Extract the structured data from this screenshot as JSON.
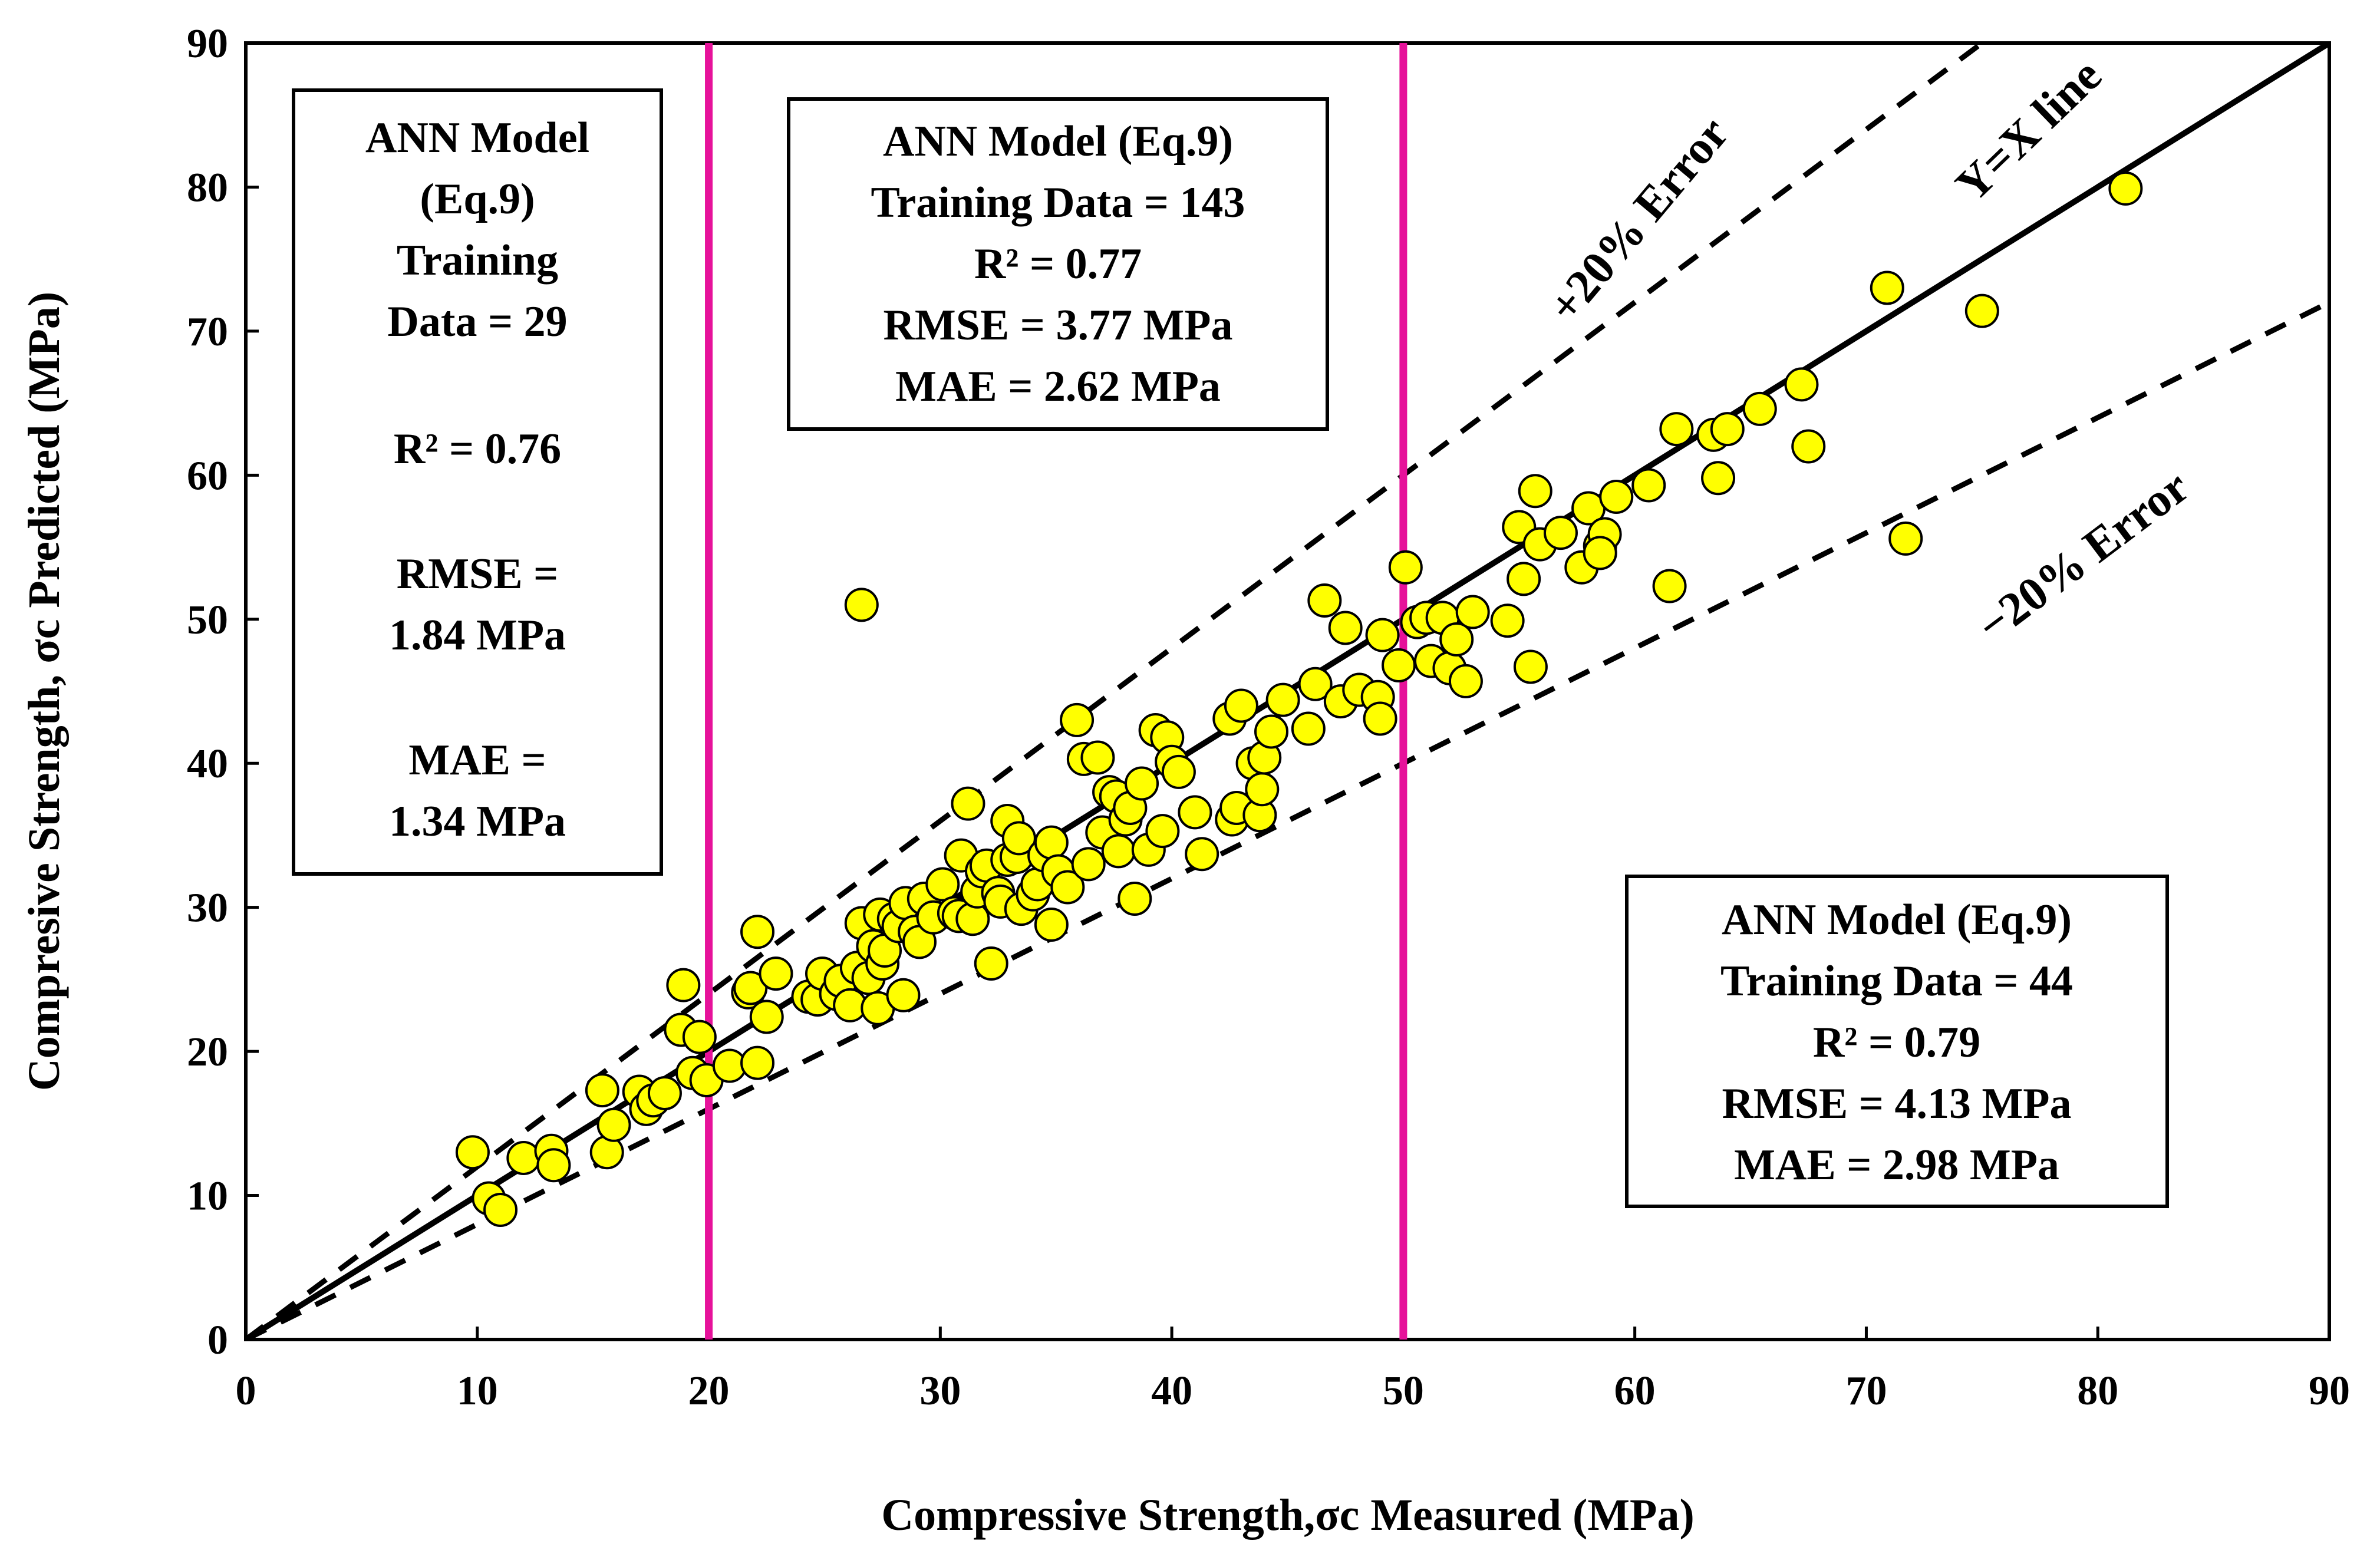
{
  "chart_data": {
    "type": "scatter",
    "xlabel": "Compressive Strength,σc Measured (MPa)",
    "ylabel": "Compresive Strength, σc Predicted (MPa)",
    "xlim": [
      0,
      90
    ],
    "ylim": [
      0,
      90
    ],
    "x_ticks": [
      "0",
      "10",
      "20",
      "30",
      "40",
      "50",
      "60",
      "70",
      "80",
      "90"
    ],
    "y_ticks": [
      "0",
      "10",
      "20",
      "30",
      "40",
      "50",
      "60",
      "70",
      "80",
      "90"
    ],
    "grid": false,
    "colors": {
      "points": "#ffff00",
      "boundary_lines": "#e6129a",
      "lines": "#000000"
    },
    "reference_lines": [
      {
        "name": "Y=X line",
        "slope": 1.0,
        "style": "solid"
      },
      {
        "name": "+20% Error",
        "slope": 1.2,
        "style": "dashed"
      },
      {
        "name": "−20% Error",
        "slope": 0.8,
        "style": "dashed"
      }
    ],
    "vertical_lines_x": [
      20,
      50
    ],
    "annotations": {
      "yx_label": "Y=X line",
      "plus_label": "+20% Error",
      "minus_label": "−20% Error"
    },
    "stat_boxes": {
      "low": {
        "title1": "ANN Model",
        "title2": "(Eq.9)",
        "data1": "Training",
        "data2": "Data = 29",
        "r2": "R² = 0.76",
        "rmse1": "RMSE =",
        "rmse2": "1.84 MPa",
        "mae1": "MAE =",
        "mae2": "1.34 MPa"
      },
      "mid": {
        "title": "ANN Model (Eq.9)",
        "data": "Training Data = 143",
        "r2": "R² = 0.77",
        "rmse": "RMSE = 3.77 MPa",
        "mae": "MAE = 2.62 MPa"
      },
      "high": {
        "title": "ANN Model (Eq.9)",
        "data": "Training Data = 44",
        "r2": "R² = 0.79",
        "rmse": "RMSE = 4.13 MPa",
        "mae": "MAE = 2.98 MPa"
      }
    },
    "points": [
      [
        9.8,
        13.0
      ],
      [
        10.5,
        9.8
      ],
      [
        11.0,
        9.0
      ],
      [
        12.0,
        12.6
      ],
      [
        13.2,
        13.1
      ],
      [
        13.3,
        12.1
      ],
      [
        15.4,
        17.3
      ],
      [
        15.6,
        13.0
      ],
      [
        15.9,
        14.9
      ],
      [
        17.0,
        17.2
      ],
      [
        17.3,
        16.0
      ],
      [
        17.6,
        16.6
      ],
      [
        18.1,
        17.1
      ],
      [
        18.8,
        21.5
      ],
      [
        18.9,
        24.6
      ],
      [
        19.3,
        18.5
      ],
      [
        19.6,
        21.0
      ],
      [
        19.9,
        18.0
      ],
      [
        20.9,
        19.0
      ],
      [
        21.7,
        24.1
      ],
      [
        21.8,
        24.4
      ],
      [
        22.1,
        28.3
      ],
      [
        22.1,
        19.2
      ],
      [
        22.5,
        22.4
      ],
      [
        22.9,
        25.4
      ],
      [
        24.3,
        23.8
      ],
      [
        24.7,
        23.6
      ],
      [
        24.9,
        25.4
      ],
      [
        25.5,
        24.0
      ],
      [
        25.7,
        24.9
      ],
      [
        26.1,
        23.2
      ],
      [
        26.4,
        25.8
      ],
      [
        26.6,
        28.9
      ],
      [
        26.6,
        51.0
      ],
      [
        26.9,
        25.1
      ],
      [
        27.1,
        27.3
      ],
      [
        27.3,
        23.0
      ],
      [
        27.4,
        29.5
      ],
      [
        27.5,
        26.1
      ],
      [
        27.6,
        27.0
      ],
      [
        28.0,
        29.2
      ],
      [
        28.2,
        28.7
      ],
      [
        28.4,
        23.9
      ],
      [
        28.5,
        30.3
      ],
      [
        28.9,
        28.3
      ],
      [
        29.1,
        27.6
      ],
      [
        29.3,
        30.6
      ],
      [
        29.7,
        29.3
      ],
      [
        30.1,
        31.6
      ],
      [
        30.6,
        29.6
      ],
      [
        30.8,
        29.4
      ],
      [
        30.9,
        33.6
      ],
      [
        31.2,
        37.2
      ],
      [
        31.4,
        29.2
      ],
      [
        31.6,
        31.1
      ],
      [
        31.8,
        32.5
      ],
      [
        32.0,
        32.9
      ],
      [
        32.2,
        26.1
      ],
      [
        32.5,
        31.0
      ],
      [
        32.6,
        30.4
      ],
      [
        32.9,
        33.3
      ],
      [
        32.9,
        36.0
      ],
      [
        33.3,
        33.5
      ],
      [
        33.4,
        34.8
      ],
      [
        33.5,
        29.9
      ],
      [
        34.0,
        30.9
      ],
      [
        34.2,
        31.6
      ],
      [
        34.5,
        33.6
      ],
      [
        34.8,
        34.5
      ],
      [
        34.8,
        28.8
      ],
      [
        35.1,
        32.5
      ],
      [
        35.5,
        31.4
      ],
      [
        35.9,
        43.0
      ],
      [
        36.2,
        40.3
      ],
      [
        36.4,
        33.0
      ],
      [
        36.8,
        40.4
      ],
      [
        37.0,
        35.2
      ],
      [
        37.3,
        38.0
      ],
      [
        37.6,
        37.7
      ],
      [
        37.7,
        33.9
      ],
      [
        38.0,
        36.1
      ],
      [
        38.2,
        36.9
      ],
      [
        38.4,
        30.6
      ],
      [
        38.7,
        38.6
      ],
      [
        39.0,
        34.0
      ],
      [
        39.3,
        42.3
      ],
      [
        39.6,
        35.3
      ],
      [
        39.8,
        41.8
      ],
      [
        40.0,
        40.1
      ],
      [
        40.3,
        39.4
      ],
      [
        41.0,
        36.6
      ],
      [
        41.3,
        33.7
      ],
      [
        42.5,
        43.1
      ],
      [
        42.6,
        36.1
      ],
      [
        42.8,
        36.9
      ],
      [
        43.0,
        44.0
      ],
      [
        43.5,
        40.0
      ],
      [
        43.8,
        36.4
      ],
      [
        43.9,
        38.2
      ],
      [
        44.0,
        40.4
      ],
      [
        44.3,
        42.2
      ],
      [
        44.8,
        44.4
      ],
      [
        45.9,
        42.4
      ],
      [
        46.2,
        45.5
      ],
      [
        46.6,
        51.3
      ],
      [
        47.3,
        44.3
      ],
      [
        47.5,
        49.4
      ],
      [
        48.1,
        45.1
      ],
      [
        48.9,
        44.6
      ],
      [
        49.0,
        43.1
      ],
      [
        49.1,
        48.9
      ],
      [
        49.8,
        46.8
      ],
      [
        50.1,
        53.6
      ],
      [
        50.6,
        49.8
      ],
      [
        51.0,
        50.1
      ],
      [
        51.2,
        47.1
      ],
      [
        51.7,
        50.1
      ],
      [
        52.0,
        46.6
      ],
      [
        52.3,
        48.6
      ],
      [
        52.7,
        45.7
      ],
      [
        53.0,
        50.5
      ],
      [
        54.5,
        49.9
      ],
      [
        55.0,
        56.4
      ],
      [
        55.2,
        52.8
      ],
      [
        55.5,
        46.7
      ],
      [
        55.7,
        58.9
      ],
      [
        55.9,
        55.2
      ],
      [
        56.8,
        56.0
      ],
      [
        57.7,
        53.6
      ],
      [
        58.0,
        57.7
      ],
      [
        58.5,
        55.1
      ],
      [
        58.7,
        55.9
      ],
      [
        58.5,
        54.6
      ],
      [
        59.2,
        58.5
      ],
      [
        60.6,
        59.3
      ],
      [
        61.5,
        52.3
      ],
      [
        61.8,
        63.2
      ],
      [
        63.4,
        62.8
      ],
      [
        63.6,
        59.8
      ],
      [
        64.0,
        63.2
      ],
      [
        65.4,
        64.6
      ],
      [
        67.2,
        66.3
      ],
      [
        67.5,
        62.0
      ],
      [
        70.9,
        73.0
      ],
      [
        71.7,
        55.6
      ],
      [
        75.0,
        71.4
      ],
      [
        81.2,
        79.9
      ]
    ]
  }
}
